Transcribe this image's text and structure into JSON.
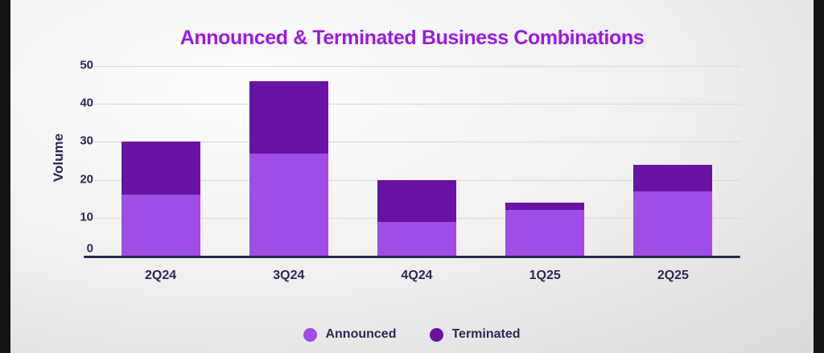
{
  "chart_data": {
    "type": "bar",
    "stacked": true,
    "title": "Announced & Terminated Business Combinations",
    "ylabel": "Volume",
    "categories": [
      "2Q24",
      "3Q24",
      "4Q24",
      "1Q25",
      "2Q25"
    ],
    "series": [
      {
        "name": "Announced",
        "color": "#a04ce6",
        "values": [
          16,
          27,
          9,
          12,
          17
        ]
      },
      {
        "name": "Terminated",
        "color": "#6a12a4",
        "values": [
          14,
          19,
          11,
          2,
          7
        ]
      }
    ],
    "ylim": [
      0,
      50
    ],
    "yticks": [
      0,
      10,
      20,
      30,
      40,
      50
    ],
    "grid": true,
    "legend_position": "bottom"
  },
  "colors": {
    "title": "#9a1be0",
    "axis_text": "#29295a",
    "baseline": "#222a4e",
    "gridline": "#d9d9d9",
    "edge_strip": "#131313"
  }
}
